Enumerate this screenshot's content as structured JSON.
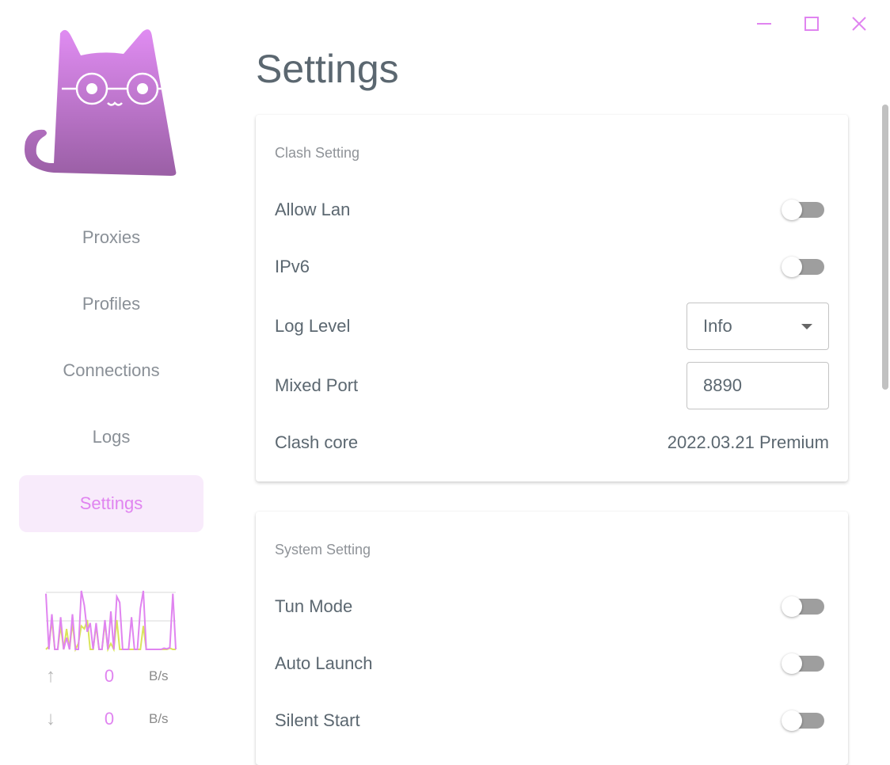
{
  "window_controls": {
    "minimize": "minimize-icon",
    "maximize": "maximize-icon",
    "close": "close-icon"
  },
  "sidebar": {
    "logo": "cat-with-glasses-logo",
    "items": [
      {
        "label": "Proxies"
      },
      {
        "label": "Profiles"
      },
      {
        "label": "Connections"
      },
      {
        "label": "Logs"
      },
      {
        "label": "Settings",
        "active": true
      }
    ],
    "traffic": {
      "upload_series": [
        95,
        0,
        60,
        0,
        0,
        55,
        0,
        20,
        0,
        60,
        0,
        0,
        100,
        75,
        30,
        45,
        0,
        45,
        0,
        0,
        50,
        0,
        65,
        0,
        90,
        80,
        0,
        0,
        0,
        55,
        0,
        0,
        70,
        100,
        0,
        0,
        0,
        0,
        0,
        0,
        2,
        1,
        3,
        95,
        0
      ],
      "download_series": [
        0,
        5,
        50,
        0,
        0,
        40,
        0,
        35,
        0,
        45,
        0,
        10,
        40,
        35,
        50,
        0,
        0,
        40,
        0,
        0,
        45,
        0,
        10,
        0,
        50,
        0,
        0,
        0,
        0,
        0,
        0,
        0,
        0,
        40,
        0,
        0,
        0,
        0,
        0,
        0,
        0,
        0,
        2,
        0,
        0
      ],
      "upload_color": "#e084f0",
      "download_color": "#dae55a",
      "up": {
        "icon": "arrow-up-icon",
        "value": "0",
        "unit": "B/s"
      },
      "down": {
        "icon": "arrow-down-icon",
        "value": "0",
        "unit": "B/s"
      }
    }
  },
  "page_title": "Settings",
  "clash": {
    "title": "Clash Setting",
    "allow_lan": {
      "label": "Allow Lan",
      "on": false
    },
    "ipv6": {
      "label": "IPv6",
      "on": false
    },
    "log_level": {
      "label": "Log Level",
      "value": "Info"
    },
    "mixed_port": {
      "label": "Mixed Port",
      "value": "8890"
    },
    "core": {
      "label": "Clash core",
      "value": "2022.03.21 Premium"
    }
  },
  "system": {
    "title": "System Setting",
    "tun": {
      "label": "Tun Mode",
      "on": false
    },
    "auto_launch": {
      "label": "Auto Launch",
      "on": false
    },
    "silent": {
      "label": "Silent Start",
      "on": false
    }
  },
  "colors": {
    "accent": "#e084f0",
    "active_bg": "#f8ebfb"
  }
}
